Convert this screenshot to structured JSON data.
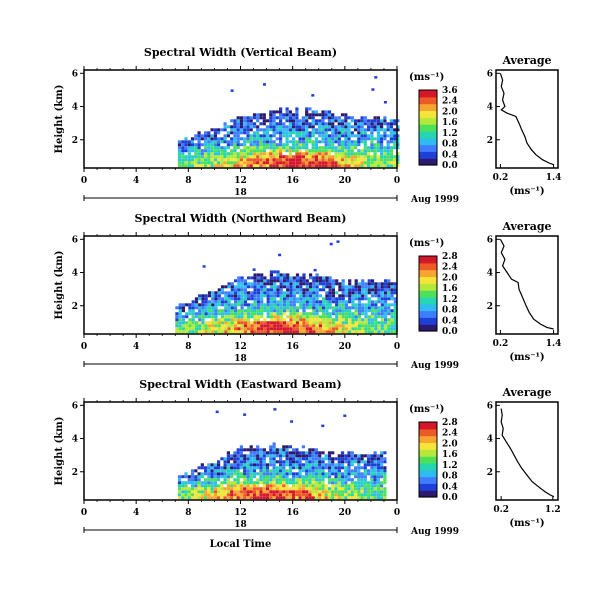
{
  "chart_data": [
    {
      "type": "heatmap",
      "title": "Spectral Width (Vertical Beam)",
      "ylabel": "Height (km)",
      "y_ticks": [
        "6",
        "4",
        "2"
      ],
      "x_ticks": [
        "0",
        "4",
        "8",
        "12",
        "16",
        "20",
        "0"
      ],
      "date_row": {
        "day": "18",
        "month_year": "Aug 1999"
      },
      "colorbar": {
        "unit": "(ms⁻¹)",
        "ticks": [
          "3.6",
          "2.4",
          "2.0",
          "1.6",
          "1.2",
          "0.8",
          "0.4",
          "0.0"
        ]
      },
      "ylim": [
        0.3,
        6.2
      ],
      "xlim": [
        0,
        24
      ],
      "profile": {
        "title": "Average",
        "xlabel": "(ms⁻¹)",
        "x_ticks": [
          "0.2",
          "1.4"
        ],
        "y_ticks": [
          "6",
          "4",
          "2"
        ],
        "xlim": [
          0.1,
          1.5
        ],
        "ylim": [
          0.3,
          6.2
        ],
        "points": [
          [
            0.2,
            6.0
          ],
          [
            0.25,
            5.6
          ],
          [
            0.22,
            5.2
          ],
          [
            0.28,
            4.8
          ],
          [
            0.25,
            4.4
          ],
          [
            0.3,
            4.0
          ],
          [
            0.22,
            3.8
          ],
          [
            0.35,
            3.6
          ],
          [
            0.55,
            3.4
          ],
          [
            0.62,
            3.0
          ],
          [
            0.68,
            2.6
          ],
          [
            0.75,
            2.2
          ],
          [
            0.8,
            1.8
          ],
          [
            0.9,
            1.4
          ],
          [
            1.0,
            1.1
          ],
          [
            1.15,
            0.8
          ],
          [
            1.3,
            0.6
          ],
          [
            1.4,
            0.5
          ]
        ]
      },
      "features": {
        "top_km": 3.2,
        "start_h": 7.2,
        "end_h": 24,
        "peak_h": 16
      }
    },
    {
      "type": "heatmap",
      "title": "Spectral Width (Northward Beam)",
      "ylabel": "Height (km)",
      "y_ticks": [
        "6",
        "4",
        "2"
      ],
      "x_ticks": [
        "0",
        "4",
        "8",
        "12",
        "16",
        "20",
        "0"
      ],
      "date_row": {
        "day": "18",
        "month_year": "Aug 1999"
      },
      "colorbar": {
        "unit": "(ms⁻¹)",
        "ticks": [
          "2.8",
          "2.4",
          "2.0",
          "1.6",
          "1.2",
          "0.8",
          "0.4",
          "0.0"
        ]
      },
      "ylim": [
        0.3,
        6.2
      ],
      "xlim": [
        0,
        24
      ],
      "profile": {
        "title": "Average",
        "xlabel": "(ms⁻¹)",
        "x_ticks": [
          "0.2",
          "1.4"
        ],
        "y_ticks": [
          "6",
          "4",
          "2"
        ],
        "xlim": [
          0.1,
          1.5
        ],
        "ylim": [
          0.3,
          6.2
        ],
        "points": [
          [
            0.2,
            6.0
          ],
          [
            0.28,
            5.6
          ],
          [
            0.22,
            5.2
          ],
          [
            0.3,
            4.8
          ],
          [
            0.25,
            4.4
          ],
          [
            0.35,
            4.0
          ],
          [
            0.45,
            3.6
          ],
          [
            0.6,
            3.4
          ],
          [
            0.62,
            3.0
          ],
          [
            0.7,
            2.5
          ],
          [
            0.78,
            2.0
          ],
          [
            0.85,
            1.6
          ],
          [
            0.95,
            1.2
          ],
          [
            1.1,
            0.9
          ],
          [
            1.25,
            0.7
          ],
          [
            1.4,
            0.6
          ]
        ]
      },
      "features": {
        "top_km": 3.4,
        "start_h": 7.0,
        "end_h": 24,
        "peak_h": 15
      }
    },
    {
      "type": "heatmap",
      "title": "Spectral Width (Eastward Beam)",
      "ylabel": "Height (km)",
      "y_ticks": [
        "6",
        "4",
        "2"
      ],
      "x_ticks": [
        "0",
        "4",
        "8",
        "12",
        "16",
        "20",
        "0"
      ],
      "x_label": "Local Time",
      "date_row": {
        "day": "18",
        "month_year": "Aug 1999"
      },
      "colorbar": {
        "unit": "(ms⁻¹)",
        "ticks": [
          "2.8",
          "2.4",
          "2.0",
          "1.6",
          "1.2",
          "0.8",
          "0.4",
          "0.0"
        ]
      },
      "ylim": [
        0.3,
        6.2
      ],
      "xlim": [
        0,
        24
      ],
      "profile": {
        "title": "Average",
        "xlabel": "(ms⁻¹)",
        "x_ticks": [
          "0.2",
          "1.2"
        ],
        "y_ticks": [
          "6",
          "4",
          "2"
        ],
        "xlim": [
          0.1,
          1.3
        ],
        "ylim": [
          0.3,
          6.2
        ],
        "points": [
          [
            0.2,
            5.8
          ],
          [
            0.22,
            5.4
          ],
          [
            0.2,
            5.0
          ],
          [
            0.24,
            4.6
          ],
          [
            0.22,
            4.2
          ],
          [
            0.3,
            3.8
          ],
          [
            0.38,
            3.4
          ],
          [
            0.45,
            3.0
          ],
          [
            0.52,
            2.6
          ],
          [
            0.6,
            2.2
          ],
          [
            0.7,
            1.8
          ],
          [
            0.8,
            1.4
          ],
          [
            0.92,
            1.1
          ],
          [
            1.05,
            0.8
          ],
          [
            1.15,
            0.6
          ],
          [
            1.22,
            0.5
          ]
        ]
      },
      "features": {
        "top_km": 3.0,
        "start_h": 7.2,
        "end_h": 23,
        "peak_h": 14
      }
    }
  ],
  "colors": {
    "scale": [
      "#2b1a6e",
      "#1e3fd8",
      "#3f7dff",
      "#2fbdf0",
      "#25d6b0",
      "#4fe05a",
      "#b4e83a",
      "#f5e43a",
      "#f7a531",
      "#ee5a26",
      "#d4172a"
    ],
    "axis": "#000000"
  }
}
